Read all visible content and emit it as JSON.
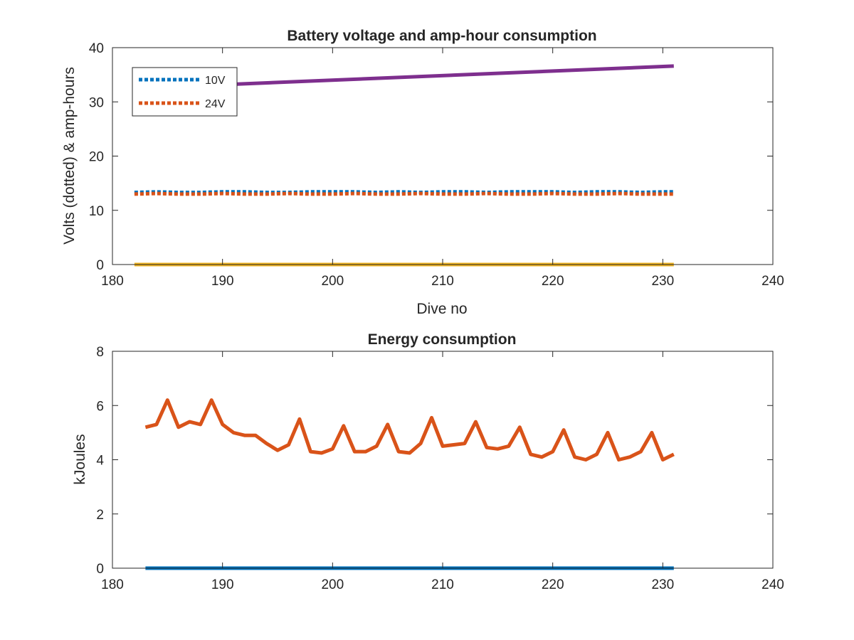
{
  "chart_data": [
    {
      "type": "line",
      "title": "Battery voltage and amp-hour consumption",
      "xlabel": "Dive no",
      "ylabel": "Volts (dotted) & amp-hours",
      "xlim": [
        180,
        240
      ],
      "ylim": [
        0,
        40
      ],
      "xticks": [
        "180",
        "190",
        "200",
        "210",
        "220",
        "230",
        "240"
      ],
      "yticks": [
        "0",
        "10",
        "20",
        "30",
        "40"
      ],
      "grid": false,
      "legend_position": "top-left",
      "series": [
        {
          "name": "10V",
          "color": "#0072BD",
          "style": "dotted",
          "x": [
            182,
            184,
            186,
            188,
            190,
            192,
            194,
            196,
            198,
            200,
            202,
            204,
            206,
            208,
            210,
            212,
            214,
            216,
            218,
            220,
            222,
            224,
            226,
            228,
            230,
            231
          ],
          "y": [
            13.3,
            13.4,
            13.3,
            13.3,
            13.4,
            13.4,
            13.3,
            13.3,
            13.4,
            13.4,
            13.4,
            13.3,
            13.4,
            13.3,
            13.4,
            13.4,
            13.3,
            13.4,
            13.4,
            13.4,
            13.3,
            13.4,
            13.4,
            13.3,
            13.4,
            13.4
          ]
        },
        {
          "name": "24V",
          "color": "#D95319",
          "style": "dotted",
          "x": [
            182,
            184,
            186,
            188,
            190,
            192,
            194,
            196,
            198,
            200,
            202,
            204,
            206,
            208,
            210,
            212,
            214,
            216,
            218,
            220,
            222,
            224,
            226,
            228,
            230,
            231
          ],
          "y": [
            13.0,
            13.1,
            13.0,
            13.0,
            13.1,
            13.0,
            13.0,
            13.1,
            13.0,
            13.0,
            13.1,
            13.0,
            13.0,
            13.1,
            13.0,
            13.0,
            13.1,
            13.0,
            13.0,
            13.1,
            13.0,
            13.0,
            13.1,
            13.0,
            13.0,
            13.0
          ]
        },
        {
          "color": "#EDB120",
          "style": "solid",
          "x": [
            182,
            231
          ],
          "y": [
            0,
            0
          ]
        },
        {
          "color": "#7E2F8E",
          "style": "solid",
          "x": [
            182,
            231
          ],
          "y": [
            32.5,
            36.6
          ]
        }
      ]
    },
    {
      "type": "line",
      "title": "Energy consumption",
      "xlabel": "",
      "ylabel": "kJoules",
      "xlim": [
        180,
        240
      ],
      "ylim": [
        0,
        8
      ],
      "xticks": [
        "180",
        "190",
        "200",
        "210",
        "220",
        "230",
        "240"
      ],
      "yticks": [
        "0",
        "2",
        "4",
        "6",
        "8"
      ],
      "grid": false,
      "series": [
        {
          "color": "#0072BD",
          "style": "solid",
          "x": [
            183,
            231
          ],
          "y": [
            0,
            0
          ]
        },
        {
          "color": "#D95319",
          "style": "solid",
          "x": [
            183,
            184,
            185,
            186,
            187,
            188,
            189,
            190,
            191,
            192,
            193,
            194,
            195,
            196,
            197,
            198,
            199,
            200,
            201,
            202,
            203,
            204,
            205,
            206,
            207,
            208,
            209,
            210,
            211,
            212,
            213,
            214,
            215,
            216,
            217,
            218,
            219,
            220,
            221,
            222,
            223,
            224,
            225,
            226,
            227,
            228,
            229,
            230,
            231
          ],
          "y": [
            5.2,
            5.3,
            6.2,
            5.2,
            5.4,
            5.3,
            6.2,
            5.3,
            5.0,
            4.9,
            4.9,
            4.6,
            4.35,
            4.55,
            5.5,
            4.3,
            4.25,
            4.4,
            5.25,
            4.3,
            4.3,
            4.5,
            5.3,
            4.3,
            4.25,
            4.6,
            5.55,
            4.5,
            4.55,
            4.6,
            5.4,
            4.45,
            4.4,
            4.5,
            5.2,
            4.2,
            4.1,
            4.3,
            5.1,
            4.1,
            4.0,
            4.2,
            5.0,
            4.0,
            4.1,
            4.3,
            5.0,
            4.0,
            4.2
          ]
        }
      ]
    }
  ]
}
